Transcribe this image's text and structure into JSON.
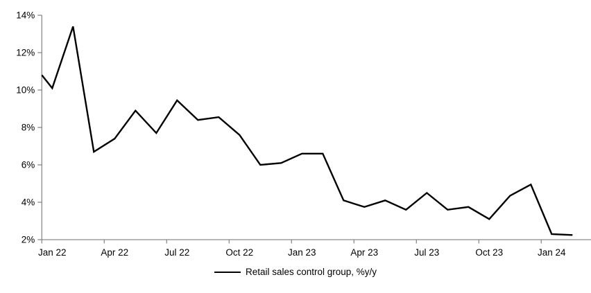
{
  "chart_data": {
    "type": "line",
    "title": "",
    "xlabel": "",
    "ylabel": "",
    "x": [
      "Jan 22",
      "Feb 22",
      "Mar 22",
      "Apr 22",
      "May 22",
      "Jun 22",
      "Jul 22",
      "Aug 22",
      "Sep 22",
      "Oct 22",
      "Nov 22",
      "Dec 22",
      "Jan 23",
      "Feb 23",
      "Mar 23",
      "Apr 23",
      "May 23",
      "Jun 23",
      "Jul 23",
      "Aug 23",
      "Sep 23",
      "Oct 23",
      "Nov 23",
      "Dec 23",
      "Jan 24",
      "Feb 24"
    ],
    "series": [
      {
        "name": "Retail sales control group, %y/y",
        "values": [
          10.1,
          13.4,
          6.7,
          7.4,
          8.9,
          7.7,
          9.45,
          8.4,
          8.55,
          7.6,
          6.0,
          6.1,
          6.6,
          6.6,
          4.1,
          3.75,
          4.1,
          3.6,
          4.5,
          3.6,
          3.75,
          3.1,
          4.35,
          4.95,
          2.3,
          2.25
        ]
      }
    ],
    "lead_in_edge_value": 10.8,
    "y_tick_labels": [
      "2%",
      "4%",
      "6%",
      "8%",
      "10%",
      "12%",
      "14%"
    ],
    "x_tick_labels": [
      "Jan 22",
      "Apr 22",
      "Jul 22",
      "Oct 22",
      "Jan 23",
      "Apr 23",
      "Jul 23",
      "Oct 23",
      "Jan 24"
    ],
    "ylim": [
      2,
      14
    ],
    "x_major_unit_months": 3,
    "grid": "off",
    "legend_position": "bottom-center",
    "colors": {
      "line": "#000000",
      "axis": "#8a8a8a",
      "text": "#000000",
      "background": "#ffffff"
    }
  }
}
